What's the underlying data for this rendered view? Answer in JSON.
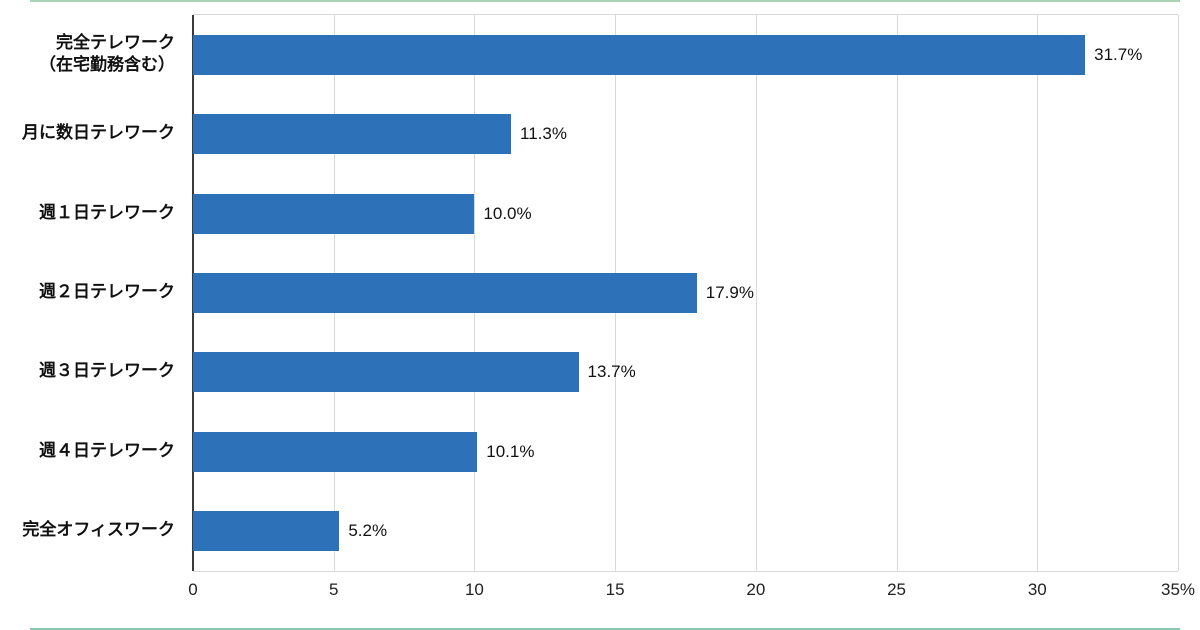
{
  "chart_data": {
    "type": "bar",
    "orientation": "horizontal",
    "title": "",
    "categories": [
      "完全テレワーク\n（在宅勤務含む）",
      "月に数日テレワーク",
      "週１日テレワーク",
      "週２日テレワーク",
      "週３日テレワーク",
      "週４日テレワーク",
      "完全オフィスワーク"
    ],
    "values": [
      31.7,
      11.3,
      10.0,
      17.9,
      13.7,
      10.1,
      5.2
    ],
    "value_labels": [
      "31.7%",
      "11.3%",
      "10.0%",
      "17.9%",
      "13.7%",
      "10.1%",
      "5.2%"
    ],
    "xlim": [
      0,
      35
    ],
    "x_ticks": [
      0,
      5,
      10,
      15,
      20,
      25,
      30,
      35
    ],
    "x_tick_labels": [
      "0",
      "5",
      "10",
      "15",
      "20",
      "25",
      "30",
      "35%"
    ],
    "xlabel": "",
    "ylabel": "",
    "grid": "vertical",
    "legend": "none",
    "colors": {
      "bar": "#2d72b8",
      "gridline": "#d9d9d9",
      "axis": "#3a3a3a",
      "text": "#111111"
    }
  }
}
